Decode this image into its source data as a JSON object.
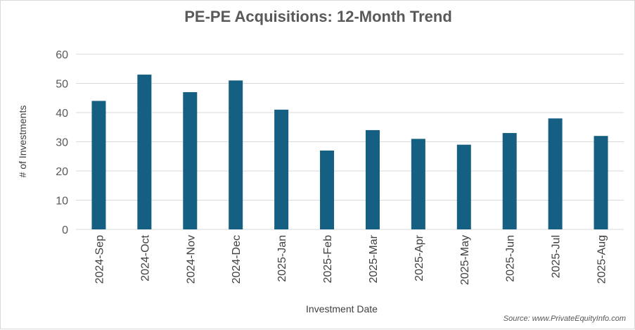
{
  "chart_data": {
    "type": "bar",
    "title": "PE-PE Acquisitions: 12-Month Trend",
    "xlabel": "Investment Date",
    "ylabel": "# of Investments",
    "categories": [
      "2024-Sep",
      "2024-Oct",
      "2024-Nov",
      "2024-Dec",
      "2025-Jan",
      "2025-Feb",
      "2025-Mar",
      "2025-Apr",
      "2025-May",
      "2025-Jun",
      "2025-Jul",
      "2025-Aug"
    ],
    "values": [
      44,
      53,
      47,
      51,
      41,
      27,
      34,
      31,
      29,
      33,
      38,
      32
    ],
    "ylim": [
      0,
      60
    ],
    "yticks": [
      0,
      10,
      20,
      30,
      40,
      50,
      60
    ],
    "grid": true,
    "bar_color": "#156082",
    "grid_color": "#d9d9d9"
  },
  "source_note": "Source: www.PrivateEquityInfo.com"
}
